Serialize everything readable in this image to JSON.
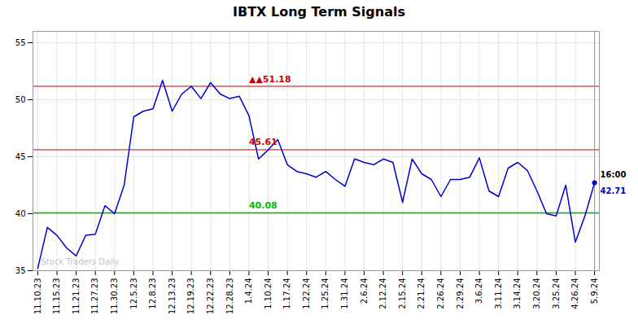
{
  "chart_data": {
    "type": "line",
    "title": "IBTX Long Term Signals",
    "categories": [
      "11.10.23",
      null,
      "11.15.23",
      null,
      "11.21.23",
      null,
      "11.27.23",
      null,
      "11.30.23",
      null,
      "12.5.23",
      null,
      "12.8.23",
      null,
      "12.13.23",
      null,
      "12.19.23",
      null,
      "12.22.23",
      null,
      "12.28.23",
      null,
      "1.4.24",
      null,
      "1.10.24",
      null,
      "1.17.24",
      null,
      "1.22.24",
      null,
      "1.25.24",
      null,
      "1.31.24",
      null,
      "2.6.24",
      null,
      "2.12.24",
      null,
      "2.15.24",
      null,
      "2.21.24",
      null,
      "2.26.24",
      null,
      "2.29.24",
      null,
      "3.6.24",
      null,
      "3.11.24",
      null,
      "3.14.24",
      null,
      "3.20.24",
      null,
      "3.25.24",
      null,
      "4.26.24",
      null,
      "5.9.24"
    ],
    "values": [
      35.2,
      38.8,
      38.1,
      37.0,
      36.3,
      38.1,
      38.2,
      40.7,
      40.0,
      42.5,
      48.5,
      49.0,
      49.2,
      51.7,
      49.0,
      50.5,
      51.18,
      50.1,
      51.5,
      50.5,
      50.1,
      50.3,
      48.6,
      44.8,
      45.6,
      46.5,
      44.3,
      43.7,
      43.5,
      43.2,
      43.7,
      43.0,
      42.4,
      44.8,
      44.5,
      44.3,
      44.8,
      44.5,
      41.0,
      44.8,
      43.5,
      43.0,
      41.5,
      43.0,
      43.0,
      43.2,
      44.9,
      42.0,
      41.5,
      44.0,
      44.5,
      43.8,
      42.0,
      40.0,
      39.8,
      42.5,
      37.5,
      39.8,
      42.71
    ],
    "color": "#0000cc",
    "ylim": [
      35,
      56
    ],
    "yticks": [
      35,
      40,
      45,
      50,
      55
    ],
    "grid": true,
    "reference_lines": [
      {
        "y": 51.18,
        "color": "#cc0000",
        "label": "▲▲51.18"
      },
      {
        "y": 45.61,
        "color": "#cc0000",
        "label": "45.61"
      },
      {
        "y": 40.08,
        "color": "#00bb00",
        "label": "40.08"
      }
    ],
    "annotations": [
      {
        "text": "16:00",
        "color": "#000000"
      },
      {
        "text": "42.71",
        "color": "#0000cc"
      }
    ],
    "watermark": "Stock Traders Daily"
  }
}
